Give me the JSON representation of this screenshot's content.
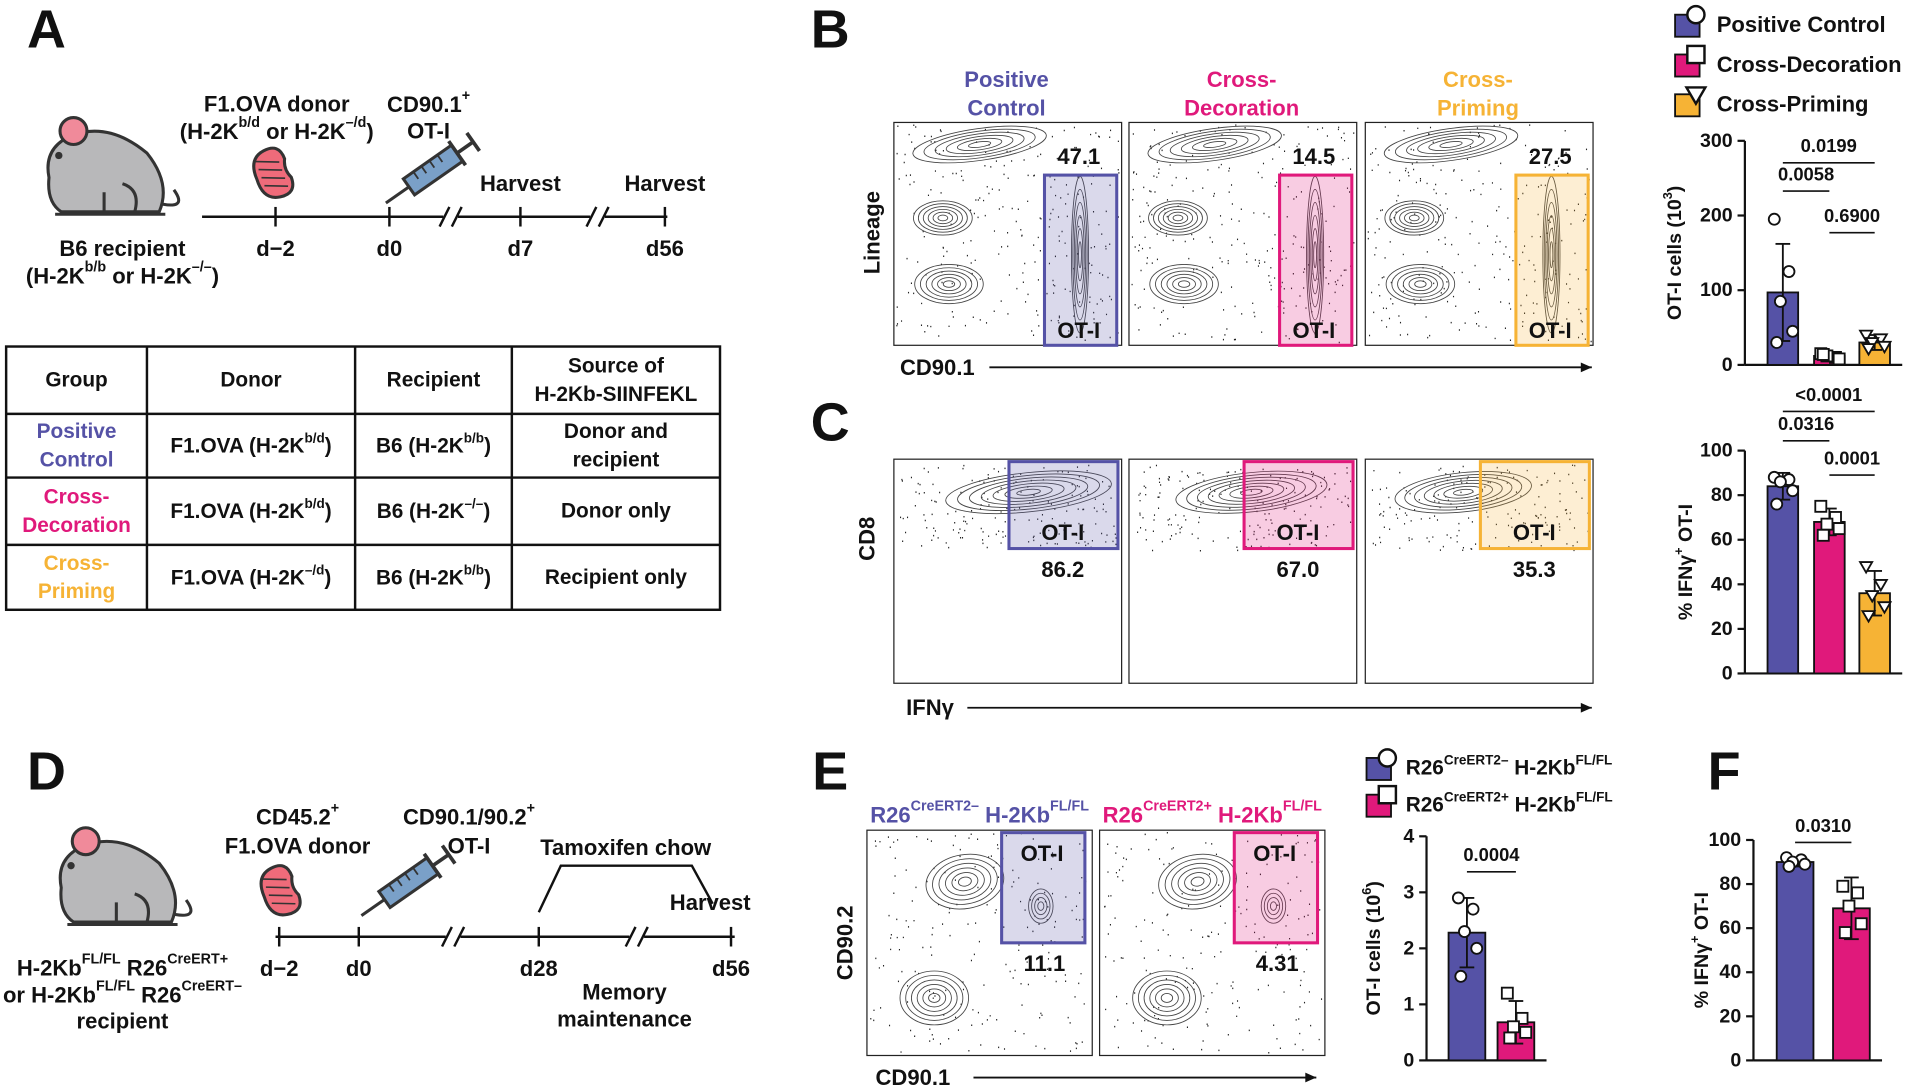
{
  "panel_a": {
    "letter": "A",
    "donor": [
      "F1.OVA donor",
      [
        "(H-2K",
        "b/d",
        " or H-2K",
        "–/d",
        ")"
      ]
    ],
    "t_cells": [
      [
        "CD90.1",
        "+"
      ],
      "OT-I"
    ],
    "recipient": [
      "B6 recipient",
      [
        "(H-2K",
        "b/b",
        " or H-2K",
        "–/–",
        ")"
      ]
    ],
    "harvest": [
      "Harvest",
      "Harvest"
    ],
    "days": [
      "d−2",
      "d0",
      "d7",
      "d56"
    ],
    "table": {
      "header": [
        [
          "Group"
        ],
        [
          "Donor"
        ],
        [
          "Recipient"
        ],
        [
          "Source of",
          "H-2Kb-SIINFEKL"
        ]
      ],
      "rows": [
        [
          [
            "Positive",
            "Control"
          ],
          [
            [
              "F1.OVA (H-2K",
              "b/d",
              ")"
            ]
          ],
          [
            [
              "B6 (H-2K",
              "b/b",
              ")"
            ]
          ],
          [
            "Donor and",
            "recipient"
          ]
        ],
        [
          [
            "Cross-",
            "Decoration"
          ],
          [
            [
              "F1.OVA (H-2K",
              "b/d",
              ")"
            ]
          ],
          [
            [
              "B6 (H-2K",
              "–/–",
              ")"
            ]
          ],
          [
            "Donor only"
          ]
        ],
        [
          [
            "Cross-",
            "Priming"
          ],
          [
            [
              "F1.OVA (H-2K",
              "–/d",
              ")"
            ]
          ],
          [
            [
              "B6 (H-2K",
              "b/b",
              ")"
            ]
          ],
          [
            "Recipient only"
          ]
        ]
      ]
    }
  },
  "legend_bc": [
    {
      "name": "Positive Control",
      "color": "#5552a6",
      "marker": "circle"
    },
    {
      "name": "Cross-Decoration",
      "color": "#e0197b",
      "marker": "square"
    },
    {
      "name": "Cross-Priming",
      "color": "#f6b335",
      "marker": "triangle"
    }
  ],
  "panel_b": {
    "letter": "B",
    "headers": [
      [
        "Positive",
        "Control"
      ],
      [
        "Cross-",
        "Decoration"
      ],
      [
        "Cross-",
        "Priming"
      ]
    ],
    "gate_label": "OT-I",
    "percents": [
      "47.1",
      "14.5",
      "27.5"
    ],
    "ylabel": "Lineage",
    "xlabel": "CD90.1",
    "chart": {
      "type": "bar",
      "ylabel": [
        "OT-I cells (10",
        "3",
        ")"
      ],
      "ylim": [
        0,
        300
      ],
      "yticks": [
        0,
        100,
        200,
        300
      ],
      "values": [
        97,
        12,
        30
      ],
      "errors": [
        65,
        5,
        10
      ],
      "points": [
        [
          195,
          125,
          85,
          45,
          30
        ],
        [
          15,
          10,
          12,
          8,
          14
        ],
        [
          40,
          35,
          30,
          25,
          22
        ]
      ],
      "comparisons": [
        {
          "label": "0.0199",
          "between": [
            0,
            2
          ]
        },
        {
          "label": "0.0058",
          "between": [
            0,
            1
          ]
        },
        {
          "label": "0.6900",
          "between": [
            1,
            2
          ]
        }
      ]
    }
  },
  "panel_c": {
    "letter": "C",
    "gate_label": "OT-I",
    "percents": [
      "86.2",
      "67.0",
      "35.3"
    ],
    "ylabel": "CD8",
    "xlabel": "IFNγ",
    "chart": {
      "type": "bar",
      "ylabel": [
        "% IFNγ",
        "+",
        " OT-I"
      ],
      "ylim": [
        0,
        100
      ],
      "yticks": [
        0,
        20,
        40,
        60,
        80,
        100
      ],
      "values": [
        84,
        68,
        36
      ],
      "errors": [
        6,
        6,
        10
      ],
      "points": [
        [
          88,
          87,
          86,
          82,
          76
        ],
        [
          75,
          70,
          67,
          65,
          62
        ],
        [
          48,
          40,
          35,
          30,
          26
        ]
      ],
      "comparisons": [
        {
          "label": "<0.0001",
          "between": [
            0,
            2
          ]
        },
        {
          "label": "0.0316",
          "between": [
            0,
            1
          ]
        },
        {
          "label": "0.0001",
          "between": [
            1,
            2
          ]
        }
      ]
    }
  },
  "panel_d": {
    "letter": "D",
    "recipient": [
      [
        "H-2Kb",
        "FL/FL",
        " R26",
        "CreERT+"
      ],
      [
        "or H-2Kb",
        "FL/FL",
        " R26",
        "CreERT–"
      ],
      "recipient"
    ],
    "donor": [
      [
        "CD45.2",
        "+"
      ],
      "F1.OVA donor"
    ],
    "t_cells": [
      [
        "CD90.1/90.2",
        "+"
      ],
      "OT-I"
    ],
    "tamoxifen": "Tamoxifen chow",
    "harvest": "Harvest",
    "days": [
      "d−2",
      "d0",
      "d28",
      "d56"
    ],
    "phase": [
      "Memory",
      "maintenance"
    ]
  },
  "legend_ef": [
    {
      "name": [
        "R26",
        "CreERT2–",
        " H-2Kb",
        "FL/FL"
      ],
      "color": "#5552a6",
      "marker": "circle"
    },
    {
      "name": [
        "R26",
        "CreERT2+",
        " H-2Kb",
        "FL/FL"
      ],
      "color": "#e0197b",
      "marker": "square"
    }
  ],
  "panel_e": {
    "letter": "E",
    "gate_label": "OT-I",
    "percents": [
      "11.1",
      "4.31"
    ],
    "ylabel": "CD90.2",
    "xlabel": "CD90.1",
    "chart": {
      "type": "bar",
      "ylabel": [
        "OT-I cells (10",
        "6",
        ")"
      ],
      "ylim": [
        0,
        4
      ],
      "yticks": [
        0,
        1,
        2,
        3,
        4
      ],
      "values": [
        2.28,
        0.68
      ],
      "errors": [
        0.62,
        0.38
      ],
      "points": [
        [
          2.9,
          2.7,
          2.3,
          2.0,
          1.5
        ],
        [
          1.2,
          0.75,
          0.6,
          0.5,
          0.4
        ]
      ],
      "comparisons": [
        {
          "label": "0.0004",
          "between": [
            0,
            1
          ]
        }
      ]
    }
  },
  "panel_f": {
    "letter": "F",
    "chart": {
      "type": "bar",
      "ylabel": [
        "% IFNγ",
        "+",
        " OT-I"
      ],
      "ylim": [
        0,
        100
      ],
      "yticks": [
        0,
        20,
        40,
        60,
        80,
        100
      ],
      "values": [
        90,
        69
      ],
      "errors": [
        2,
        14
      ],
      "points": [
        [
          92,
          91,
          90,
          89,
          88
        ],
        [
          79,
          76,
          70,
          62,
          58
        ]
      ],
      "comparisons": [
        {
          "label": "0.0310",
          "between": [
            0,
            1
          ]
        }
      ]
    }
  }
}
